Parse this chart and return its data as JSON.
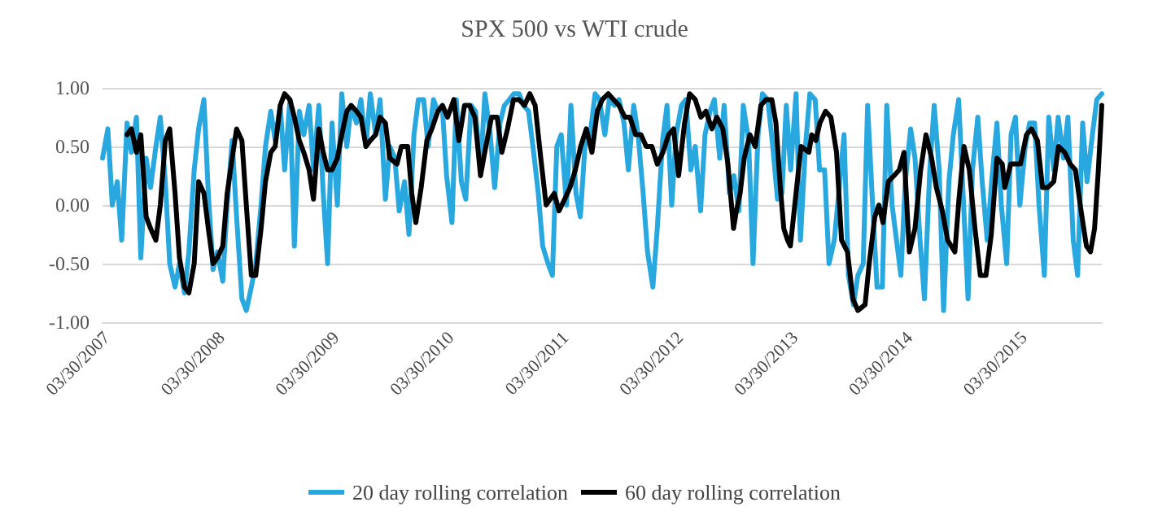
{
  "chart_data": {
    "type": "line",
    "title": "SPX 500 vs WTI crude",
    "xlim": [
      "2007-03-15",
      "2015-12-01"
    ],
    "xticks": [
      {
        "value": "2007-03-30",
        "label": "03/30/2007"
      },
      {
        "value": "2008-03-30",
        "label": "03/30/2008"
      },
      {
        "value": "2009-03-30",
        "label": "03/30/2009"
      },
      {
        "value": "2010-03-30",
        "label": "03/30/2010"
      },
      {
        "value": "2011-03-30",
        "label": "03/30/2011"
      },
      {
        "value": "2012-03-30",
        "label": "03/30/2012"
      },
      {
        "value": "2013-03-30",
        "label": "03/30/2013"
      },
      {
        "value": "2014-03-30",
        "label": "03/30/2014"
      },
      {
        "value": "2015-03-30",
        "label": "03/30/2015"
      }
    ],
    "ylim": [
      -1,
      1
    ],
    "yticks": [
      {
        "value": -1,
        "label": "-1.00"
      },
      {
        "value": -0.5,
        "label": "-0.50"
      },
      {
        "value": 0,
        "label": "0.00"
      },
      {
        "value": 0.5,
        "label": "0.50"
      },
      {
        "value": 1,
        "label": "1.00"
      }
    ],
    "grid": "y",
    "legend": "bottom",
    "marker": "none",
    "line_style": "solid",
    "series": [
      {
        "name": "20 day rolling correlation",
        "color": "#29a8e0",
        "x": [
          "2007-03-15",
          "2007-04-01",
          "2007-04-15",
          "2007-05-01",
          "2007-05-15",
          "2007-06-01",
          "2007-06-15",
          "2007-07-01",
          "2007-07-15",
          "2007-08-01",
          "2007-08-15",
          "2007-09-01",
          "2007-09-15",
          "2007-10-01",
          "2007-10-15",
          "2007-11-01",
          "2007-11-15",
          "2007-12-01",
          "2007-12-15",
          "2008-01-01",
          "2008-01-15",
          "2008-02-01",
          "2008-02-15",
          "2008-03-01",
          "2008-03-15",
          "2008-04-01",
          "2008-04-15",
          "2008-05-01",
          "2008-05-15",
          "2008-06-01",
          "2008-06-15",
          "2008-07-01",
          "2008-07-15",
          "2008-08-01",
          "2008-08-15",
          "2008-09-01",
          "2008-09-15",
          "2008-10-01",
          "2008-10-15",
          "2008-11-01",
          "2008-11-15",
          "2008-12-01",
          "2008-12-15",
          "2009-01-01",
          "2009-01-15",
          "2009-02-01",
          "2009-02-15",
          "2009-03-01",
          "2009-03-15",
          "2009-04-01",
          "2009-04-15",
          "2009-05-01",
          "2009-05-15",
          "2009-06-01",
          "2009-06-15",
          "2009-07-01",
          "2009-07-15",
          "2009-08-01",
          "2009-08-15",
          "2009-09-01",
          "2009-09-15",
          "2009-10-01",
          "2009-10-15",
          "2009-11-01",
          "2009-11-15",
          "2009-12-01",
          "2009-12-15",
          "2010-01-01",
          "2010-01-15",
          "2010-02-01",
          "2010-02-15",
          "2010-03-01",
          "2010-03-15",
          "2010-04-01",
          "2010-04-15",
          "2010-05-01",
          "2010-05-15",
          "2010-06-01",
          "2010-06-15",
          "2010-07-01",
          "2010-07-15",
          "2010-08-01",
          "2010-08-15",
          "2010-09-01",
          "2010-09-15",
          "2010-10-01",
          "2010-10-15",
          "2010-11-01",
          "2010-11-15",
          "2010-12-01",
          "2010-12-15",
          "2011-01-01",
          "2011-01-15",
          "2011-02-01",
          "2011-02-15",
          "2011-03-01",
          "2011-03-15",
          "2011-04-01",
          "2011-04-15",
          "2011-05-01",
          "2011-05-15",
          "2011-06-01",
          "2011-06-15",
          "2011-07-01",
          "2011-07-15",
          "2011-08-01",
          "2011-08-15",
          "2011-09-01",
          "2011-09-15",
          "2011-10-01",
          "2011-10-15",
          "2011-11-01",
          "2011-11-15",
          "2011-12-01",
          "2011-12-15",
          "2012-01-01",
          "2012-01-15",
          "2012-02-01",
          "2012-02-15",
          "2012-03-01",
          "2012-03-15",
          "2012-04-01",
          "2012-04-15",
          "2012-05-01",
          "2012-05-15",
          "2012-06-01",
          "2012-06-15",
          "2012-07-01",
          "2012-07-15",
          "2012-08-01",
          "2012-08-15",
          "2012-09-01",
          "2012-09-15",
          "2012-10-01",
          "2012-10-15",
          "2012-11-01",
          "2012-11-15",
          "2012-12-01",
          "2012-12-15",
          "2013-01-01",
          "2013-01-15",
          "2013-02-01",
          "2013-02-15",
          "2013-03-01",
          "2013-03-15",
          "2013-04-01",
          "2013-04-15",
          "2013-05-01",
          "2013-05-15",
          "2013-06-01",
          "2013-06-15",
          "2013-07-01",
          "2013-07-15",
          "2013-08-01",
          "2013-08-15",
          "2013-09-01",
          "2013-09-15",
          "2013-10-01",
          "2013-10-15",
          "2013-11-01",
          "2013-11-15",
          "2013-12-01",
          "2013-12-15",
          "2014-01-01",
          "2014-01-15",
          "2014-02-01",
          "2014-02-15",
          "2014-03-01",
          "2014-03-15",
          "2014-04-01",
          "2014-04-15",
          "2014-05-01",
          "2014-05-15",
          "2014-06-01",
          "2014-06-15",
          "2014-07-01",
          "2014-07-15",
          "2014-08-01",
          "2014-08-15",
          "2014-09-01",
          "2014-09-15",
          "2014-10-01",
          "2014-10-15",
          "2014-11-01",
          "2014-11-15",
          "2014-12-01",
          "2014-12-15",
          "2015-01-01",
          "2015-01-15",
          "2015-02-01",
          "2015-02-15",
          "2015-03-01",
          "2015-03-15",
          "2015-04-01",
          "2015-04-15",
          "2015-05-01",
          "2015-05-15",
          "2015-06-01",
          "2015-06-15",
          "2015-07-01",
          "2015-07-15",
          "2015-08-01",
          "2015-08-15",
          "2015-09-01",
          "2015-09-15",
          "2015-10-01",
          "2015-10-15",
          "2015-11-01",
          "2015-11-15",
          "2015-12-01"
        ],
        "values": [
          0.4,
          0.65,
          0.0,
          0.2,
          -0.3,
          0.7,
          0.45,
          0.75,
          -0.45,
          0.4,
          0.15,
          0.5,
          0.75,
          0.2,
          -0.5,
          -0.7,
          -0.5,
          -0.75,
          -0.4,
          0.3,
          0.65,
          0.9,
          0.1,
          -0.55,
          -0.4,
          -0.65,
          0.0,
          0.55,
          -0.1,
          -0.8,
          -0.9,
          -0.7,
          -0.5,
          0.0,
          0.5,
          0.8,
          0.55,
          0.85,
          0.3,
          0.9,
          -0.35,
          0.8,
          0.6,
          0.85,
          0.3,
          0.85,
          0.1,
          -0.5,
          0.7,
          0.0,
          0.95,
          0.5,
          0.85,
          0.7,
          0.9,
          0.5,
          0.95,
          0.6,
          0.9,
          0.05,
          0.5,
          0.4,
          -0.05,
          0.2,
          -0.25,
          0.6,
          0.9,
          0.9,
          0.5,
          0.9,
          0.8,
          0.85,
          0.25,
          -0.15,
          0.9,
          0.2,
          0.05,
          0.85,
          0.8,
          0.3,
          0.95,
          0.6,
          0.15,
          0.7,
          0.85,
          0.9,
          0.95,
          0.95,
          0.85,
          0.8,
          0.5,
          0.1,
          -0.35,
          -0.5,
          -0.6,
          0.5,
          0.6,
          0.0,
          0.85,
          0.1,
          -0.1,
          0.6,
          0.6,
          0.95,
          0.9,
          0.6,
          0.9,
          0.85,
          0.9,
          0.7,
          0.3,
          0.85,
          0.6,
          0.1,
          -0.4,
          -0.7,
          -0.2,
          0.55,
          0.85,
          0.0,
          0.6,
          0.85,
          0.9,
          0.3,
          0.5,
          -0.05,
          0.6,
          0.8,
          0.9,
          0.4,
          0.85,
          0.1,
          0.25,
          -0.05,
          0.85,
          0.55,
          -0.5,
          0.6,
          0.95,
          0.9,
          0.55,
          0.05,
          0.1,
          0.85,
          0.3,
          0.95,
          -0.3,
          0.5,
          0.95,
          0.9,
          0.3,
          0.3,
          -0.5,
          -0.3,
          0.1,
          0.6,
          -0.6,
          -0.85,
          -0.6,
          -0.5,
          0.85,
          0.0,
          -0.7,
          -0.7,
          0.85,
          0.0,
          -0.3,
          -0.6,
          0.2,
          0.65,
          0.4,
          -0.3,
          -0.8,
          0.3,
          0.85,
          0.3,
          -0.9,
          0.2,
          0.6,
          0.9,
          0.1,
          -0.8,
          0.3,
          0.75,
          0.2,
          -0.3,
          0.2,
          0.7,
          0.0,
          -0.5,
          0.6,
          0.75,
          0.0,
          0.5,
          0.7,
          0.7,
          0.0,
          -0.6,
          0.75,
          0.3,
          0.75,
          0.4,
          0.75,
          -0.3,
          -0.6,
          0.7,
          0.2,
          0.6,
          0.9,
          0.95
        ]
      },
      {
        "name": "60 day rolling correlation",
        "color": "#000000",
        "x": [
          "2007-06-01",
          "2007-06-15",
          "2007-07-01",
          "2007-07-15",
          "2007-08-01",
          "2007-08-15",
          "2007-09-01",
          "2007-09-15",
          "2007-10-01",
          "2007-10-15",
          "2007-11-01",
          "2007-11-15",
          "2007-12-01",
          "2007-12-15",
          "2008-01-01",
          "2008-01-15",
          "2008-02-01",
          "2008-02-15",
          "2008-03-01",
          "2008-03-15",
          "2008-04-01",
          "2008-04-15",
          "2008-05-01",
          "2008-05-15",
          "2008-06-01",
          "2008-06-15",
          "2008-07-01",
          "2008-07-15",
          "2008-08-01",
          "2008-08-15",
          "2008-09-01",
          "2008-09-15",
          "2008-10-01",
          "2008-10-15",
          "2008-11-01",
          "2008-11-15",
          "2008-12-01",
          "2008-12-15",
          "2009-01-01",
          "2009-01-15",
          "2009-02-01",
          "2009-02-15",
          "2009-03-01",
          "2009-03-15",
          "2009-04-01",
          "2009-04-15",
          "2009-05-01",
          "2009-05-15",
          "2009-06-01",
          "2009-06-15",
          "2009-07-01",
          "2009-07-15",
          "2009-08-01",
          "2009-08-15",
          "2009-09-01",
          "2009-09-15",
          "2009-10-08",
          "2009-10-22",
          "2009-11-11",
          "2009-11-24",
          "2009-12-07",
          "2009-12-24",
          "2010-01-11",
          "2010-01-27",
          "2010-02-15",
          "2010-03-02",
          "2010-03-18",
          "2010-04-07",
          "2010-04-23",
          "2010-05-11",
          "2010-05-27",
          "2010-06-13",
          "2010-07-01",
          "2010-07-18",
          "2010-08-05",
          "2010-08-23",
          "2010-09-07",
          "2010-09-25",
          "2010-10-14",
          "2010-11-01",
          "2010-11-18",
          "2010-12-05",
          "2010-12-22",
          "2011-01-09",
          "2011-01-26",
          "2011-02-08",
          "2011-02-21",
          "2011-03-08",
          "2011-03-26",
          "2011-04-12",
          "2011-04-29",
          "2011-05-16",
          "2011-06-03",
          "2011-06-21",
          "2011-07-08",
          "2011-07-24",
          "2011-08-12",
          "2011-08-29",
          "2011-09-15",
          "2011-10-04",
          "2011-10-20",
          "2011-11-07",
          "2011-11-24",
          "2011-12-11",
          "2011-12-29",
          "2012-01-15",
          "2012-02-02",
          "2012-02-20",
          "2012-03-07",
          "2012-03-23",
          "2012-04-11",
          "2012-04-27",
          "2012-05-15",
          "2012-06-02",
          "2012-06-18",
          "2012-07-07",
          "2012-07-23",
          "2012-08-11",
          "2012-08-27",
          "2012-09-14",
          "2012-09-23",
          "2012-10-05",
          "2012-10-18",
          "2012-11-05",
          "2012-11-22",
          "2012-12-10",
          "2012-12-26",
          "2013-01-14",
          "2013-01-27",
          "2013-02-10",
          "2013-02-21",
          "2013-03-05",
          "2013-03-14",
          "2013-04-01",
          "2013-04-17",
          "2013-05-12",
          "2013-05-21",
          "2013-06-03",
          "2013-06-16",
          "2013-07-04",
          "2013-07-21",
          "2013-08-08",
          "2013-08-24",
          "2013-09-12",
          "2013-09-29",
          "2013-10-15",
          "2013-11-07",
          "2013-11-20",
          "2013-12-08",
          "2013-12-21",
          "2014-01-03",
          "2014-01-20",
          "2014-02-07",
          "2014-02-24",
          "2014-03-11",
          "2014-03-28",
          "2014-04-15",
          "2014-05-03",
          "2014-05-20",
          "2014-06-07",
          "2014-06-22",
          "2014-07-11",
          "2014-07-28",
          "2014-08-20",
          "2014-09-02",
          "2014-09-18",
          "2014-10-05",
          "2014-10-23",
          "2014-11-09",
          "2014-11-27",
          "2014-12-14",
          "2015-01-01",
          "2015-01-18",
          "2015-01-26",
          "2015-02-14",
          "2015-03-01",
          "2015-03-17",
          "2015-04-05",
          "2015-04-21",
          "2015-05-10",
          "2015-05-26",
          "2015-06-12",
          "2015-07-01",
          "2015-07-16",
          "2015-08-05",
          "2015-08-22",
          "2015-09-08",
          "2015-09-26",
          "2015-10-13",
          "2015-10-26",
          "2015-11-08",
          "2015-11-20",
          "2015-12-01"
        ],
        "values": [
          0.6,
          0.65,
          0.45,
          0.6,
          -0.1,
          -0.2,
          -0.3,
          0.0,
          0.55,
          0.65,
          0.1,
          -0.45,
          -0.7,
          -0.75,
          -0.5,
          0.2,
          0.1,
          -0.2,
          -0.5,
          -0.45,
          -0.35,
          0.1,
          0.4,
          0.65,
          0.55,
          0.0,
          -0.6,
          -0.6,
          -0.2,
          0.2,
          0.45,
          0.5,
          0.85,
          0.95,
          0.9,
          0.75,
          0.55,
          0.45,
          0.3,
          0.05,
          0.65,
          0.45,
          0.3,
          0.3,
          0.4,
          0.6,
          0.8,
          0.85,
          0.8,
          0.75,
          0.5,
          0.55,
          0.6,
          0.75,
          0.7,
          0.4,
          0.35,
          0.5,
          0.5,
          0.1,
          -0.15,
          0.15,
          0.55,
          0.65,
          0.8,
          0.85,
          0.75,
          0.9,
          0.55,
          0.85,
          0.85,
          0.75,
          0.25,
          0.5,
          0.75,
          0.75,
          0.45,
          0.65,
          0.9,
          0.9,
          0.85,
          0.95,
          0.85,
          0.4,
          0.0,
          0.05,
          0.1,
          -0.05,
          0.05,
          0.15,
          0.3,
          0.5,
          0.65,
          0.45,
          0.8,
          0.9,
          0.95,
          0.9,
          0.85,
          0.75,
          0.75,
          0.6,
          0.6,
          0.5,
          0.5,
          0.35,
          0.45,
          0.6,
          0.65,
          0.25,
          0.7,
          0.95,
          0.9,
          0.75,
          0.8,
          0.65,
          0.75,
          0.65,
          0.35,
          -0.2,
          -0.05,
          0.1,
          0.4,
          0.6,
          0.5,
          0.85,
          0.9,
          0.9,
          0.7,
          0.15,
          -0.2,
          -0.3,
          -0.35,
          0.1,
          0.5,
          0.45,
          0.6,
          0.55,
          0.7,
          0.8,
          0.75,
          0.45,
          -0.3,
          -0.4,
          -0.8,
          -0.9,
          -0.85,
          -0.5,
          -0.1,
          0.0,
          -0.15,
          0.2,
          0.25,
          0.3,
          0.45,
          -0.4,
          -0.2,
          0.3,
          0.6,
          0.4,
          0.15,
          -0.05,
          -0.3,
          -0.4,
          0.05,
          0.5,
          0.3,
          -0.2,
          -0.6,
          -0.6,
          -0.25,
          0.4,
          0.35,
          0.15,
          0.35,
          0.35,
          0.35,
          0.6,
          0.65,
          0.55,
          0.15,
          0.15,
          0.2,
          0.5,
          0.45,
          0.35,
          0.3,
          -0.05,
          -0.35,
          -0.4,
          -0.2,
          0.3,
          0.85
        ]
      }
    ]
  }
}
